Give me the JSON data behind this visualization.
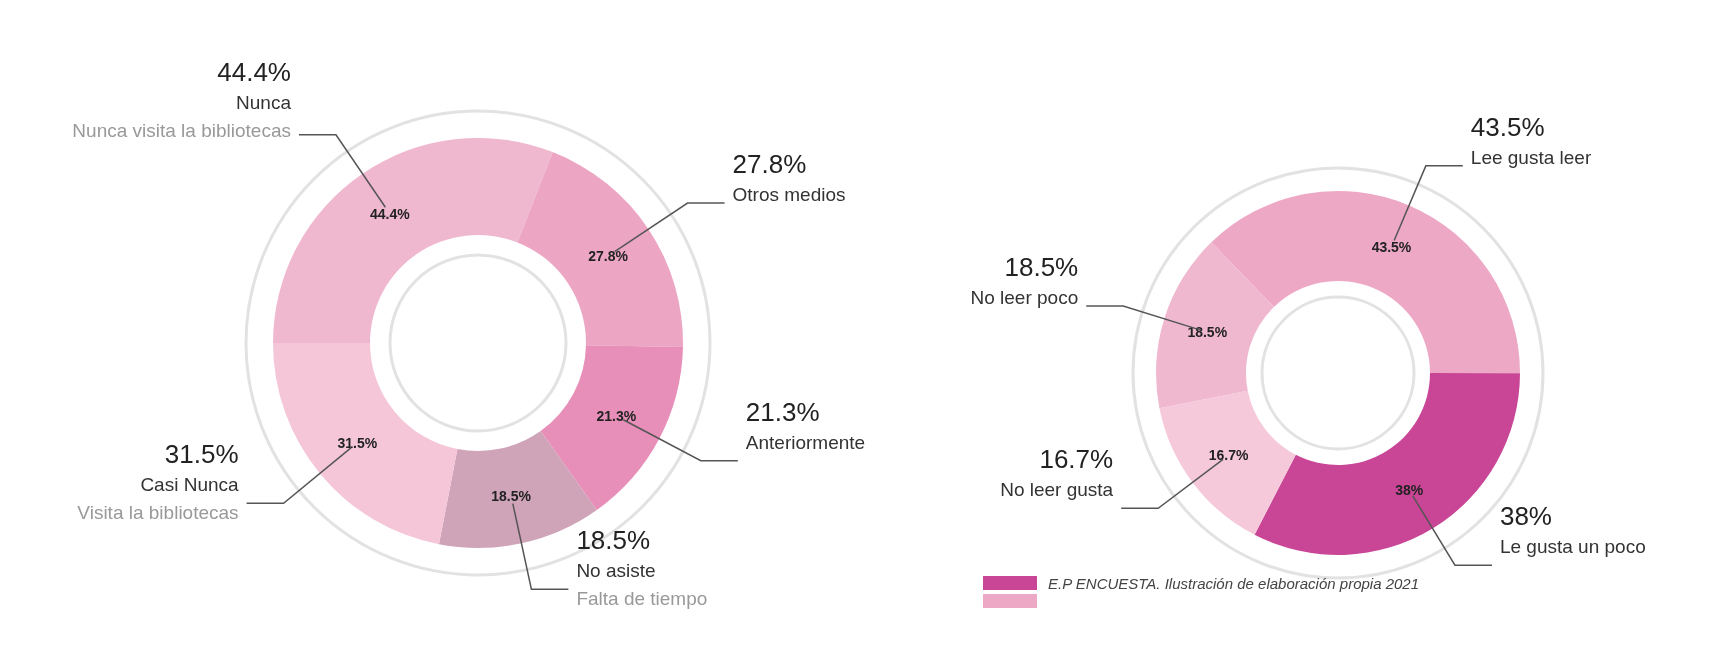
{
  "chart_data": [
    {
      "type": "donut",
      "categories": [
        "Nunca",
        "Otros medios",
        "Anteriormente",
        "No asiste",
        "Casi Nunca"
      ],
      "values": [
        44.4,
        27.8,
        21.3,
        18.5,
        31.5
      ],
      "value_labels": [
        "44.4%",
        "27.8%",
        "21.3%",
        "18.5%",
        "31.5%"
      ],
      "colors": [
        "#f0b8cf",
        "#eca6c4",
        "#e78fb8",
        "#cfa3b8",
        "#f4c6d8"
      ],
      "annotations": [
        {
          "text": "Nunca visita la bibliotecas",
          "x": "Nunca"
        },
        {
          "text": "Falta de tiempo",
          "x": "No asiste"
        },
        {
          "text": "Visita la bibliotecas",
          "x": "Casi Nunca"
        }
      ]
    },
    {
      "type": "donut",
      "categories": [
        "Lee gusta leer",
        "Le gusta un poco",
        "No leer gusta",
        "No leer poco"
      ],
      "values": [
        43.5,
        38,
        16.7,
        18.5
      ],
      "value_labels": [
        "43.5%",
        "38%",
        "16.7%",
        "18.5%"
      ],
      "colors": [
        "#eda8c6",
        "#c94596",
        "#f5c9da",
        "#f0b8cf"
      ],
      "annotations": [
        "E.P ENCUESTA. Ilustración de elaboración propia 2021"
      ]
    }
  ]
}
